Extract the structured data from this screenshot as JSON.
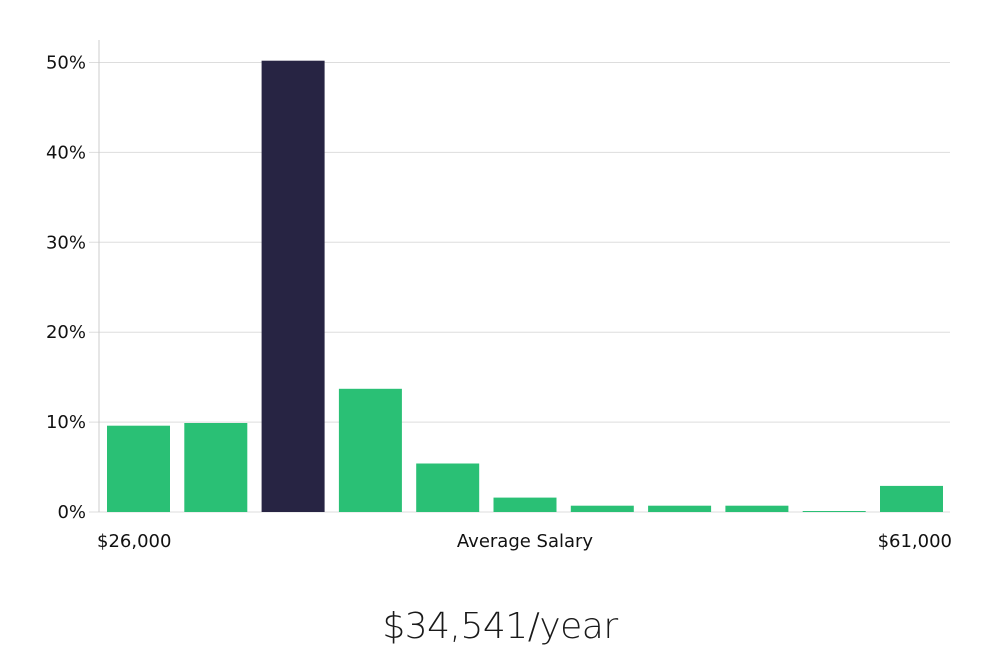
{
  "chart_data": {
    "type": "bar",
    "xlabel": "Average Salary",
    "x_range_labels": [
      "$26,000",
      "$61,000"
    ],
    "ylim": [
      0,
      52.5
    ],
    "yticks": [
      0,
      10,
      20,
      30,
      40,
      50
    ],
    "ytick_labels": [
      "0%",
      "10%",
      "20%",
      "30%",
      "40%",
      "50%"
    ],
    "grid": true,
    "values": [
      9.6,
      9.9,
      50.2,
      13.7,
      5.4,
      1.6,
      0.7,
      0.7,
      0.7,
      0.1,
      2.9
    ],
    "highlight_index": 2,
    "colors": {
      "bar": "#2ac075",
      "highlight": "#272443",
      "grid": "#dddddd",
      "axis": "#cccccc"
    }
  },
  "summary": {
    "salary_text": "$34,541/year"
  }
}
